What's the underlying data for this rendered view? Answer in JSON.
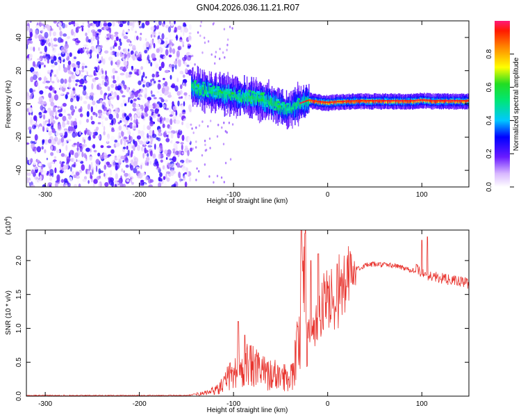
{
  "title": "GN04.2026.036.11.21.R07",
  "chart_data": [
    {
      "type": "heatmap",
      "name": "spectrogram",
      "xlabel": "Height of straight line (km)",
      "ylabel": "Frequency (Hz)",
      "xlim": [
        -320,
        150
      ],
      "ylim": [
        -50,
        50
      ],
      "xticks": [
        -300,
        -200,
        -100,
        0,
        100
      ],
      "yticks": [
        -40,
        -20,
        0,
        20,
        40
      ],
      "noise_region": [
        -320,
        -145
      ],
      "ridge": {
        "x": [
          -145,
          -130,
          -110,
          -90,
          -75,
          -60,
          -50,
          -45,
          -40,
          -30,
          -20,
          -10,
          0,
          10,
          30,
          60,
          90,
          100,
          110,
          150
        ],
        "y": [
          10,
          8,
          6,
          4,
          3,
          1,
          -2,
          -4,
          -3,
          0,
          2,
          1,
          0.5,
          1,
          1.5,
          1.5,
          1.5,
          2,
          1.5,
          1.5
        ]
      },
      "colorbar": {
        "label": "Normalized spectral amplitude",
        "range": [
          0.0,
          1.0
        ],
        "ticks": [
          "0.0",
          "0.2",
          "0.4",
          "0.6",
          "0.8"
        ]
      }
    },
    {
      "type": "line",
      "name": "snr",
      "xlabel": "Height of straight line (km)",
      "ylabel": "SNR (10 * v/v)",
      "multiplier": "(x10",
      "multiplier_exp": "4",
      "multiplier_close": ")",
      "color": "#e8312b",
      "xlim": [
        -320,
        150
      ],
      "ylim": [
        0,
        2.45
      ],
      "xticks": [
        -300,
        -200,
        -100,
        0,
        100
      ],
      "yticks": [
        "0.0",
        "0.5",
        "1.0",
        "1.5",
        "2.0"
      ],
      "envelope": {
        "x": [
          -320,
          -150,
          -130,
          -115,
          -105,
          -95,
          -85,
          -75,
          -65,
          -55,
          -45,
          -38,
          -32,
          -28,
          -24,
          -20,
          -15,
          -10,
          -5,
          0,
          5,
          10,
          15,
          20,
          25,
          30,
          40,
          50,
          60,
          70,
          80,
          90,
          95,
          100,
          105,
          110,
          120,
          130,
          140,
          150
        ],
        "y": [
          0.01,
          0.01,
          0.05,
          0.12,
          0.3,
          0.42,
          0.5,
          0.42,
          0.36,
          0.33,
          0.3,
          0.35,
          0.75,
          1.4,
          1.65,
          1.3,
          1.0,
          1.2,
          1.4,
          1.45,
          1.48,
          1.6,
          1.65,
          1.72,
          1.82,
          1.88,
          1.93,
          1.95,
          1.94,
          1.93,
          1.9,
          1.86,
          1.88,
          1.83,
          1.8,
          1.78,
          1.75,
          1.72,
          1.7,
          1.67
        ]
      },
      "spikes": [
        {
          "x": -95,
          "y": 1.1
        },
        {
          "x": -88,
          "y": 0.9
        },
        {
          "x": -28,
          "y": 2.45
        },
        {
          "x": -24,
          "y": 2.4
        },
        {
          "x": -18,
          "y": 2.0
        },
        {
          "x": -10,
          "y": 2.1
        },
        {
          "x": 10,
          "y": 1.95
        },
        {
          "x": 100,
          "y": 2.3
        },
        {
          "x": 106,
          "y": 2.35
        }
      ]
    }
  ]
}
